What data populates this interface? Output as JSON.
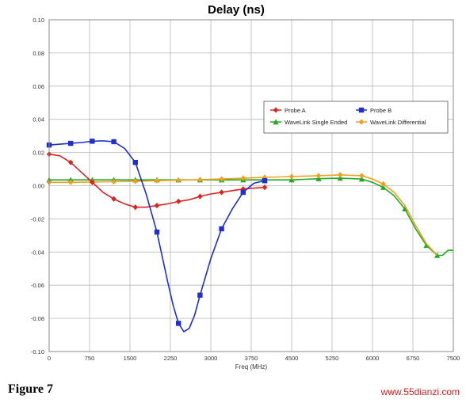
{
  "figure_label": "Figure 7",
  "watermark": "www.55dianzi.com",
  "colors": {
    "probe_a": "#dd2222",
    "probe_b": "#1f2fcc",
    "single_ended": "#22aa22",
    "differential": "#f0a020",
    "grid": "#b8b8b8"
  },
  "chart_data": {
    "type": "line",
    "title": "Delay (ns)",
    "xlabel": "Freq (MHz)",
    "ylabel": "",
    "xlim": [
      0,
      7500
    ],
    "ylim": [
      -0.1,
      0.1
    ],
    "x_ticks": [
      "0",
      "750",
      "1500",
      "2250",
      "3000",
      "3750",
      "4500",
      "5250",
      "6000",
      "6750",
      "7500"
    ],
    "x_tick_values": [
      0,
      750,
      1500,
      2250,
      3000,
      3750,
      4500,
      5250,
      6000,
      6750,
      7500
    ],
    "y_ticks": [
      "0.10",
      "0.08",
      "0.06",
      "0.04",
      "0.02",
      "0.00",
      "-0.02",
      "-0.04",
      "-0.06",
      "-0.08",
      "-0.10"
    ],
    "y_tick_values": [
      0.1,
      0.08,
      0.06,
      0.04,
      0.02,
      0.0,
      -0.02,
      -0.04,
      -0.06,
      -0.08,
      -0.1
    ],
    "grid": true,
    "legend_position": "top-right",
    "legend": [
      "Probe A",
      "Probe B",
      "WaveLink Single Ended",
      "WaveLink Differential"
    ],
    "series": [
      {
        "name": "Probe A",
        "marker": "diamond",
        "color": "#dd2222",
        "x": [
          0,
          200,
          400,
          600,
          800,
          1000,
          1200,
          1400,
          1600,
          1800,
          2000,
          2200,
          2400,
          2600,
          2800,
          3000,
          3200,
          3400,
          3600,
          3800,
          4000
        ],
        "y": [
          0.019,
          0.018,
          0.014,
          0.008,
          0.002,
          -0.004,
          -0.008,
          -0.011,
          -0.013,
          -0.013,
          -0.012,
          -0.011,
          -0.0095,
          -0.0085,
          -0.0065,
          -0.005,
          -0.004,
          -0.003,
          -0.002,
          -0.0015,
          -0.001
        ],
        "marker_x": [
          0,
          400,
          800,
          1200,
          1600,
          2000,
          2400,
          2800,
          3200,
          3600,
          4000
        ],
        "marker_y": [
          0.019,
          0.014,
          0.002,
          -0.008,
          -0.013,
          -0.012,
          -0.0095,
          -0.0065,
          -0.004,
          -0.002,
          -0.001
        ]
      },
      {
        "name": "Probe B",
        "marker": "square",
        "color": "#1f2fcc",
        "x": [
          0,
          200,
          400,
          600,
          800,
          1000,
          1200,
          1400,
          1600,
          1800,
          2000,
          2200,
          2300,
          2400,
          2500,
          2600,
          2700,
          2800,
          3000,
          3200,
          3400,
          3600,
          3800,
          4000
        ],
        "y": [
          0.0245,
          0.025,
          0.0255,
          0.026,
          0.0268,
          0.027,
          0.0265,
          0.0225,
          0.014,
          -0.005,
          -0.028,
          -0.058,
          -0.072,
          -0.083,
          -0.088,
          -0.086,
          -0.078,
          -0.066,
          -0.044,
          -0.026,
          -0.014,
          -0.004,
          0.0015,
          0.003
        ],
        "marker_x": [
          0,
          400,
          800,
          1200,
          1600,
          2000,
          2400,
          2800,
          3200,
          3600,
          4000
        ],
        "marker_y": [
          0.0245,
          0.0255,
          0.0268,
          0.0265,
          0.014,
          -0.028,
          -0.083,
          -0.066,
          -0.026,
          -0.004,
          0.003
        ]
      },
      {
        "name": "WaveLink Single Ended",
        "marker": "triangle",
        "color": "#22aa22",
        "x": [
          0,
          400,
          800,
          1200,
          1600,
          2000,
          2400,
          2800,
          3200,
          3600,
          4000,
          4500,
          5000,
          5400,
          5800,
          6000,
          6200,
          6400,
          6600,
          6800,
          7000,
          7200,
          7300,
          7400,
          7500
        ],
        "y": [
          0.0035,
          0.0035,
          0.0035,
          0.0035,
          0.0035,
          0.0035,
          0.0035,
          0.0035,
          0.0035,
          0.0035,
          0.0035,
          0.0035,
          0.0042,
          0.0045,
          0.004,
          0.002,
          -0.001,
          -0.006,
          -0.014,
          -0.026,
          -0.036,
          -0.042,
          -0.042,
          -0.039,
          -0.039
        ],
        "marker_x": [
          0,
          400,
          800,
          1200,
          1600,
          2000,
          2400,
          2800,
          3200,
          3600,
          4000,
          4500,
          5000,
          5400,
          5800,
          6200,
          6600,
          7000,
          7200
        ],
        "marker_y": [
          0.0035,
          0.0035,
          0.0035,
          0.0035,
          0.0035,
          0.0035,
          0.0035,
          0.0035,
          0.0035,
          0.0035,
          0.0035,
          0.0035,
          0.0042,
          0.0045,
          0.004,
          -0.001,
          -0.014,
          -0.036,
          -0.042
        ]
      },
      {
        "name": "WaveLink Differential",
        "marker": "diamond",
        "color": "#f0a020",
        "x": [
          0,
          400,
          800,
          1200,
          1600,
          2000,
          2400,
          2800,
          3200,
          3600,
          4000,
          4500,
          5000,
          5400,
          5800,
          6000,
          6200,
          6400,
          6600,
          6800,
          7000,
          7200
        ],
        "y": [
          0.002,
          0.002,
          0.0022,
          0.0024,
          0.0026,
          0.003,
          0.0033,
          0.0036,
          0.004,
          0.0045,
          0.005,
          0.0055,
          0.006,
          0.0065,
          0.006,
          0.004,
          0.001,
          -0.004,
          -0.012,
          -0.024,
          -0.035,
          -0.042
        ],
        "marker_x": [
          0,
          400,
          800,
          1200,
          1600,
          2000,
          2400,
          2800,
          3200,
          3600,
          4000,
          4500,
          5000,
          5400,
          5800,
          6200
        ],
        "marker_y": [
          0.002,
          0.002,
          0.0022,
          0.0024,
          0.0026,
          0.003,
          0.0033,
          0.0036,
          0.004,
          0.0045,
          0.005,
          0.0055,
          0.006,
          0.0065,
          0.006,
          0.001
        ]
      }
    ]
  }
}
